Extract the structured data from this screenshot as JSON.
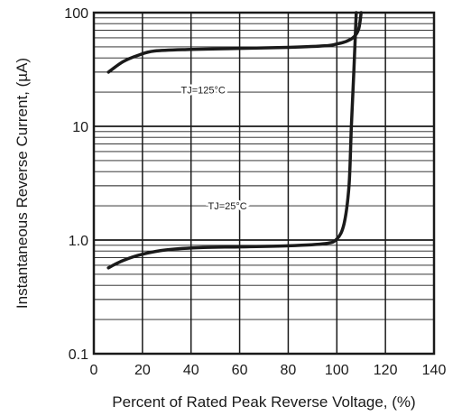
{
  "chart_data": {
    "type": "line",
    "title": "",
    "xlabel": "Percent of Rated Peak Reverse Voltage, (%)",
    "ylabel": "Instantaneous Reverse Current, (µA)",
    "xlim": [
      0,
      140
    ],
    "ylim": [
      0.1,
      100
    ],
    "yscale": "log",
    "grid": true,
    "x_ticks": [
      0,
      20,
      40,
      60,
      80,
      100,
      120,
      140
    ],
    "x_tick_labels": [
      "0",
      "20",
      "40",
      "60",
      "80",
      "100",
      "120",
      "140"
    ],
    "y_ticks": [
      0.1,
      1.0,
      10,
      100
    ],
    "y_tick_labels": [
      "0.1",
      "1.0",
      "10",
      "100"
    ],
    "series": [
      {
        "name": "TJ=125°C",
        "label_at": [
          45,
          21
        ],
        "points": [
          [
            6,
            30
          ],
          [
            12,
            37
          ],
          [
            18,
            42
          ],
          [
            25,
            46
          ],
          [
            40,
            47.5
          ],
          [
            60,
            48.5
          ],
          [
            80,
            49.5
          ],
          [
            95,
            51
          ],
          [
            100,
            53
          ],
          [
            104,
            56
          ],
          [
            107,
            61
          ],
          [
            109,
            72
          ],
          [
            110,
            100
          ]
        ]
      },
      {
        "name": "TJ=25°C",
        "label_at": [
          55,
          2.0
        ],
        "points": [
          [
            6,
            0.57
          ],
          [
            12,
            0.66
          ],
          [
            20,
            0.75
          ],
          [
            30,
            0.82
          ],
          [
            45,
            0.86
          ],
          [
            60,
            0.87
          ],
          [
            80,
            0.89
          ],
          [
            95,
            0.93
          ],
          [
            100,
            1.02
          ],
          [
            103,
            1.4
          ],
          [
            105,
            3
          ],
          [
            106,
            10
          ],
          [
            107,
            30
          ],
          [
            108,
            100
          ]
        ]
      }
    ]
  }
}
